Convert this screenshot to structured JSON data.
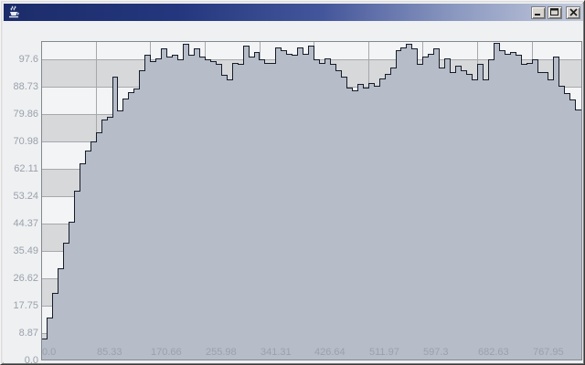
{
  "window": {
    "title": "",
    "icon": "java-coffee-cup-icon",
    "buttons": [
      {
        "name": "minimize-button",
        "glyph": "minimize"
      },
      {
        "name": "maximize-button",
        "glyph": "maximize"
      },
      {
        "name": "close-button",
        "glyph": "close"
      }
    ]
  },
  "chart_data": {
    "type": "area",
    "step": true,
    "title": "",
    "xlabel": "",
    "ylabel": "",
    "x_tick_labels": [
      "0.0",
      "85.33",
      "170.66",
      "255.98",
      "341.31",
      "426.64",
      "511.97",
      "597.3",
      "682.63",
      "767.95"
    ],
    "y_tick_labels": [
      "97.6",
      "88.73",
      "79.86",
      "70.98",
      "62.11",
      "53.24",
      "44.37",
      "35.49",
      "26.62",
      "17.75",
      "8.87",
      "0.0"
    ],
    "x_tick_interval": 85.33,
    "y_tick_interval": 8.873,
    "xlim": [
      0,
      847
    ],
    "ylim": [
      0,
      103.5
    ],
    "grid": true,
    "banded_background": true,
    "legend": "none",
    "bin_width": 8.53,
    "series": [
      {
        "name": "trace",
        "x_start": 0,
        "values": [
          7,
          14,
          22,
          30,
          38,
          45,
          55,
          64,
          68,
          71,
          74,
          78,
          79,
          92,
          81,
          85,
          87,
          88,
          94,
          99,
          97,
          98,
          101,
          98.5,
          99,
          97.6,
          102.5,
          99,
          101,
          98.5,
          97.5,
          97,
          96,
          92.5,
          91,
          96.3,
          96,
          102,
          98.5,
          100,
          97.5,
          96.4,
          96.4,
          101.5,
          100.5,
          99.4,
          99,
          101.5,
          99.5,
          102,
          97.5,
          96.5,
          98,
          96,
          94,
          92,
          88.5,
          87.5,
          89.5,
          88.5,
          90,
          89,
          91.5,
          93,
          95,
          100.5,
          101.5,
          102.5,
          101,
          96,
          98.5,
          99.5,
          101,
          95,
          98,
          93.5,
          95.5,
          94,
          93,
          91,
          96,
          91,
          97.6,
          103,
          100.5,
          99.5,
          100,
          99,
          96,
          96.5,
          97.6,
          93.5,
          93.5,
          91,
          98.5,
          89,
          86.5,
          84.6,
          81.3
        ]
      }
    ],
    "colors": {
      "fill": "#b6bdc9",
      "stroke": "#161c28",
      "band_gray": "#d6d8da",
      "band_white": "#f3f4f6",
      "gridline": "#a6a8ac",
      "plot_border": "#83888f",
      "tick_label": "#9ba1ab",
      "titlebar_left": "#1c2c6a",
      "titlebar_right": "#c3cbdd"
    }
  }
}
